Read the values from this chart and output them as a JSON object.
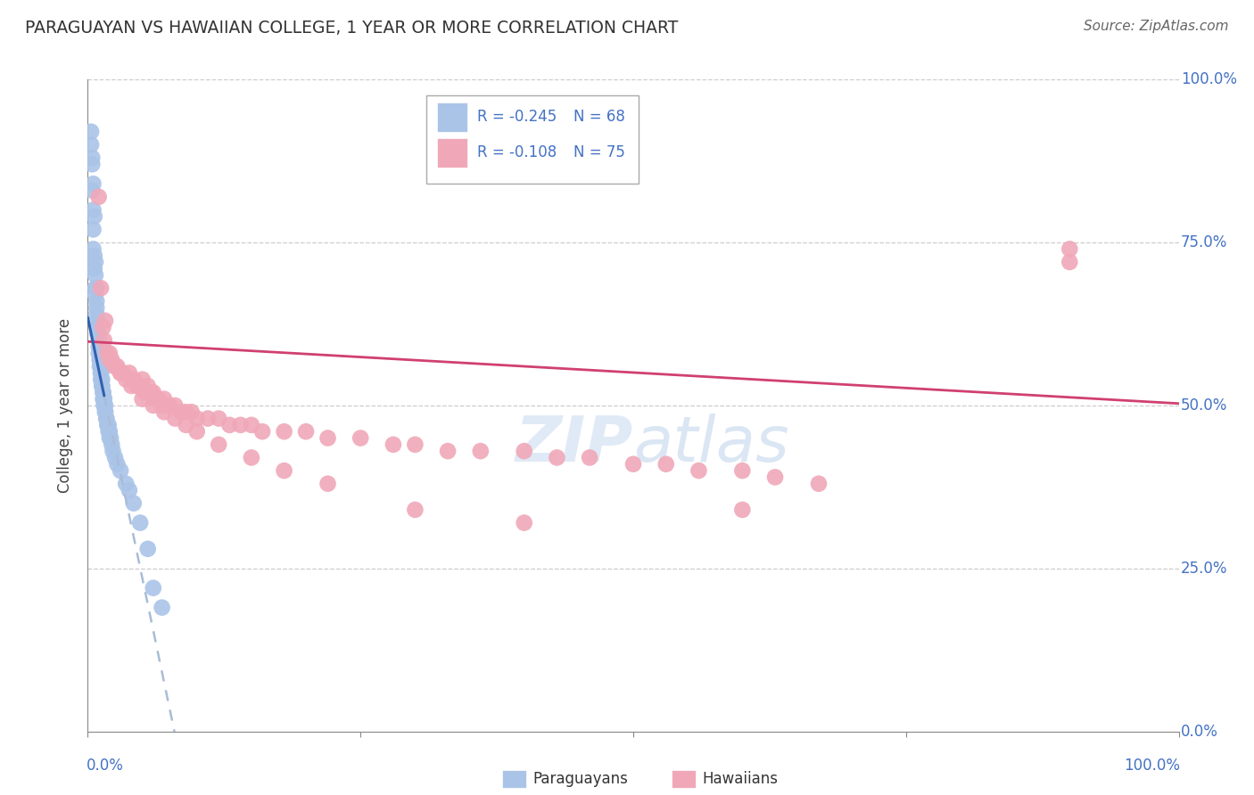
{
  "title": "PARAGUAYAN VS HAWAIIAN COLLEGE, 1 YEAR OR MORE CORRELATION CHART",
  "source": "Source: ZipAtlas.com",
  "ylabel": "College, 1 year or more",
  "blue_color": "#aac4e8",
  "pink_color": "#f0a8b8",
  "blue_line_color": "#3060b0",
  "pink_line_color": "#d04070",
  "dashed_line_color": "#a8bcd8",
  "blue_x": [
    0.003,
    0.004,
    0.004,
    0.005,
    0.005,
    0.005,
    0.006,
    0.006,
    0.007,
    0.007,
    0.007,
    0.008,
    0.008,
    0.008,
    0.009,
    0.009,
    0.009,
    0.01,
    0.01,
    0.01,
    0.01,
    0.011,
    0.011,
    0.011,
    0.012,
    0.012,
    0.012,
    0.012,
    0.013,
    0.013,
    0.013,
    0.014,
    0.014,
    0.014,
    0.015,
    0.015,
    0.015,
    0.015,
    0.016,
    0.016,
    0.016,
    0.017,
    0.017,
    0.018,
    0.018,
    0.019,
    0.019,
    0.02,
    0.02,
    0.021,
    0.022,
    0.023,
    0.025,
    0.027,
    0.03,
    0.035,
    0.038,
    0.042,
    0.048,
    0.055,
    0.06,
    0.068,
    0.003,
    0.004,
    0.005,
    0.006,
    0.007,
    0.008
  ],
  "blue_y": [
    0.9,
    0.87,
    0.83,
    0.8,
    0.77,
    0.74,
    0.73,
    0.71,
    0.7,
    0.68,
    0.67,
    0.66,
    0.65,
    0.64,
    0.63,
    0.62,
    0.61,
    0.61,
    0.6,
    0.59,
    0.58,
    0.57,
    0.57,
    0.56,
    0.56,
    0.55,
    0.55,
    0.54,
    0.54,
    0.53,
    0.53,
    0.52,
    0.52,
    0.51,
    0.51,
    0.51,
    0.5,
    0.5,
    0.5,
    0.49,
    0.49,
    0.48,
    0.48,
    0.47,
    0.47,
    0.47,
    0.46,
    0.46,
    0.45,
    0.45,
    0.44,
    0.43,
    0.42,
    0.41,
    0.4,
    0.38,
    0.37,
    0.35,
    0.32,
    0.28,
    0.22,
    0.19,
    0.92,
    0.88,
    0.84,
    0.79,
    0.72,
    0.68
  ],
  "pink_x": [
    0.01,
    0.012,
    0.014,
    0.015,
    0.016,
    0.018,
    0.02,
    0.022,
    0.025,
    0.027,
    0.03,
    0.032,
    0.035,
    0.038,
    0.04,
    0.042,
    0.045,
    0.048,
    0.05,
    0.052,
    0.055,
    0.058,
    0.06,
    0.062,
    0.065,
    0.068,
    0.07,
    0.075,
    0.08,
    0.085,
    0.09,
    0.095,
    0.1,
    0.11,
    0.12,
    0.13,
    0.14,
    0.15,
    0.16,
    0.18,
    0.2,
    0.22,
    0.25,
    0.28,
    0.3,
    0.33,
    0.36,
    0.4,
    0.43,
    0.46,
    0.5,
    0.53,
    0.56,
    0.6,
    0.63,
    0.67,
    0.02,
    0.025,
    0.03,
    0.04,
    0.05,
    0.06,
    0.07,
    0.08,
    0.09,
    0.1,
    0.12,
    0.15,
    0.18,
    0.22,
    0.3,
    0.4,
    0.6,
    0.9,
    0.9
  ],
  "pink_y": [
    0.82,
    0.68,
    0.62,
    0.6,
    0.63,
    0.58,
    0.57,
    0.57,
    0.56,
    0.56,
    0.55,
    0.55,
    0.54,
    0.55,
    0.54,
    0.54,
    0.53,
    0.53,
    0.54,
    0.52,
    0.53,
    0.52,
    0.52,
    0.51,
    0.51,
    0.5,
    0.51,
    0.5,
    0.5,
    0.49,
    0.49,
    0.49,
    0.48,
    0.48,
    0.48,
    0.47,
    0.47,
    0.47,
    0.46,
    0.46,
    0.46,
    0.45,
    0.45,
    0.44,
    0.44,
    0.43,
    0.43,
    0.43,
    0.42,
    0.42,
    0.41,
    0.41,
    0.4,
    0.4,
    0.39,
    0.38,
    0.58,
    0.56,
    0.55,
    0.53,
    0.51,
    0.5,
    0.49,
    0.48,
    0.47,
    0.46,
    0.44,
    0.42,
    0.4,
    0.38,
    0.34,
    0.32,
    0.34,
    0.72,
    0.74
  ]
}
